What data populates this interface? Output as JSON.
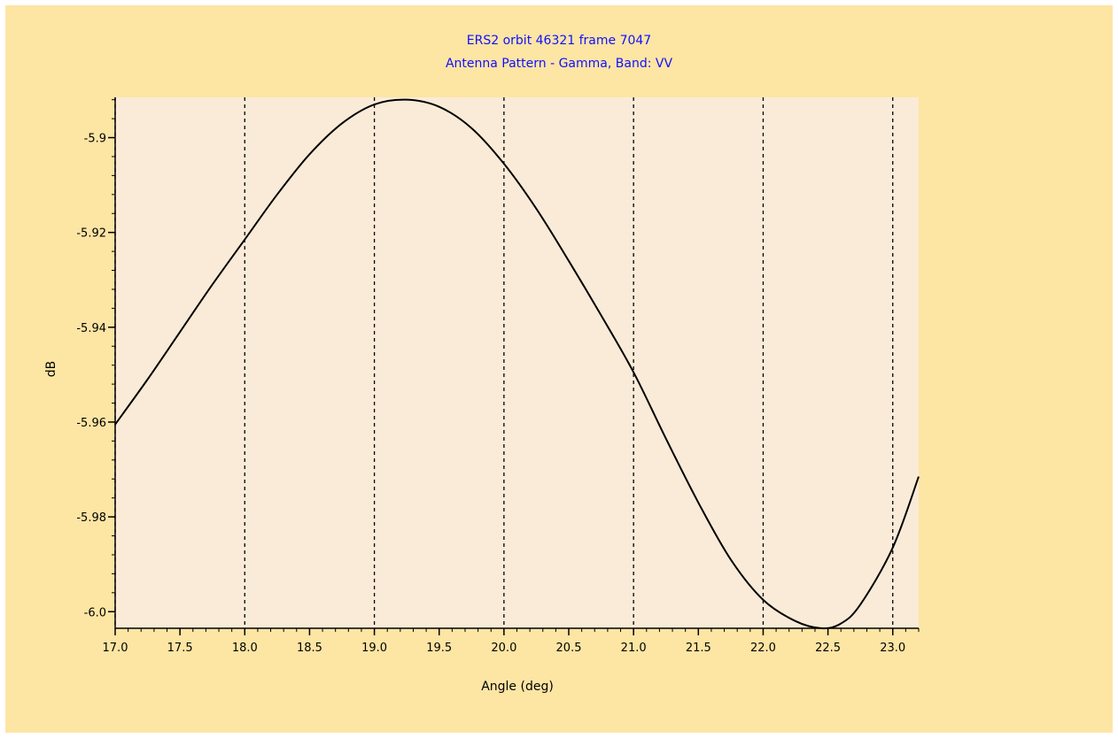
{
  "colors": {
    "outer_background": "#fde5a4",
    "plot_background": "#faebd8",
    "title_color": "#1010ff",
    "axis_text": "#000000",
    "curve": "#000000",
    "grid": "#000000"
  },
  "chart_data": {
    "type": "line",
    "title": "ERS2 orbit 46321 frame 7047",
    "subtitle": "Antenna Pattern - Gamma, Band: VV",
    "xlabel": "Angle (deg)",
    "ylabel": "dB",
    "xlim": [
      17.0,
      23.2
    ],
    "ylim": [
      -6.0035,
      -5.8915
    ],
    "x_ticks": [
      17.0,
      17.5,
      18.0,
      18.5,
      19.0,
      19.5,
      20.0,
      20.5,
      21.0,
      21.5,
      22.0,
      22.5,
      23.0
    ],
    "x_tick_labels": [
      "17.0",
      "17.5",
      "18.0",
      "18.5",
      "19.0",
      "19.5",
      "20.0",
      "20.5",
      "21.0",
      "21.5",
      "22.0",
      "22.5",
      "23.0"
    ],
    "y_ticks": [
      -5.9,
      -5.92,
      -5.94,
      -5.96,
      -5.98,
      -6.0
    ],
    "y_tick_labels": [
      "-5.9",
      "-5.92",
      "-5.94",
      "-5.96",
      "-5.98",
      "-6.0"
    ],
    "grid": {
      "vertical": true,
      "horizontal": false,
      "style": "dashed",
      "at_x": [
        17.0,
        18.0,
        19.0,
        20.0,
        21.0,
        22.0,
        23.0
      ]
    },
    "series": [
      {
        "x": [
          17.0,
          17.25,
          17.5,
          17.75,
          18.0,
          18.25,
          18.5,
          18.75,
          19.0,
          19.25,
          19.5,
          19.75,
          20.0,
          20.25,
          20.5,
          20.75,
          21.0,
          21.25,
          21.5,
          21.75,
          22.0,
          22.25,
          22.45,
          22.6,
          22.75,
          23.0,
          23.2
        ],
        "y": [
          -5.9605,
          -5.951,
          -5.941,
          -5.931,
          -5.9215,
          -5.912,
          -5.9035,
          -5.897,
          -5.893,
          -5.892,
          -5.8935,
          -5.898,
          -5.9055,
          -5.915,
          -5.926,
          -5.9375,
          -5.9495,
          -5.9635,
          -5.977,
          -5.989,
          -5.9975,
          -6.002,
          -6.0035,
          -6.0025,
          -5.9985,
          -5.9865,
          -5.9715
        ]
      }
    ]
  }
}
